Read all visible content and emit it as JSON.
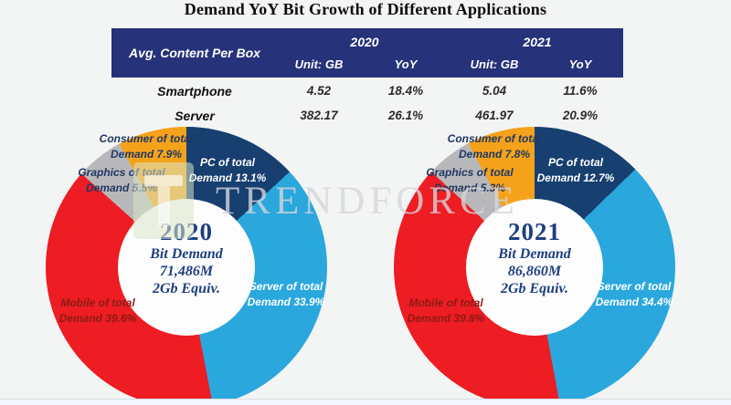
{
  "title": "Demand YoY Bit Growth of Different Applications",
  "watermark": {
    "text": "TRENDFORCE",
    "logo": "trendforce-tf-logo"
  },
  "colors": {
    "table_header_bg": "#263279",
    "pc_navy": "#173f70",
    "server_cyan": "#2aa7dd",
    "mobile_red": "#ee1c23",
    "graphics_gray": "#b8b8ba",
    "consumer_orange": "#f5a21b",
    "center_text_navy": "#1e3f80",
    "page_bg": "#f3f4f4"
  },
  "table": {
    "corner_label": "Avg. Content Per Box",
    "year_groups": [
      "2020",
      "2021"
    ],
    "sub_headers": [
      "Unit: GB",
      "YoY",
      "Unit: GB",
      "YoY"
    ],
    "rows": [
      {
        "label": "Smartphone",
        "values": [
          "4.52",
          "18.4%",
          "5.04",
          "11.6%"
        ]
      },
      {
        "label": "Server",
        "values": [
          "382.17",
          "26.1%",
          "461.97",
          "20.9%"
        ]
      }
    ]
  },
  "chart_data": [
    {
      "type": "pie",
      "title": "2020",
      "center_lines": [
        "2020",
        "Bit Demand",
        "71,486M",
        "2Gb Equiv."
      ],
      "total_bit_demand": "71,486M",
      "unit_note": "2Gb Equiv.",
      "slices": [
        {
          "name": "pc",
          "label_lines": [
            "PC of total",
            "Demand 13.1%"
          ],
          "value": 13.1,
          "color": "#173f70",
          "label_color": "#ffffff"
        },
        {
          "name": "server",
          "label_lines": [
            "Server of total",
            "Demand 33.9%"
          ],
          "value": 33.9,
          "color": "#2aa7dd",
          "label_color": "#ffffff"
        },
        {
          "name": "mobile",
          "label_lines": [
            "Mobile of total",
            "Demand 39.6%"
          ],
          "value": 39.6,
          "color": "#ee1c23",
          "label_color": "#8a1c15"
        },
        {
          "name": "graphics",
          "label_lines": [
            "Graphics of total",
            "Demand 5.5%"
          ],
          "value": 5.5,
          "color": "#b8b8ba",
          "label_color": "#1f3864"
        },
        {
          "name": "consumer",
          "label_lines": [
            "Consumer of total",
            "Demand 7.9%"
          ],
          "value": 7.9,
          "color": "#f5a21b",
          "label_color": "#1f3864"
        }
      ]
    },
    {
      "type": "pie",
      "title": "2021",
      "center_lines": [
        "2021",
        "Bit Demand",
        "86,860M",
        "2Gb Equiv."
      ],
      "total_bit_demand": "86,860M",
      "unit_note": "2Gb Equiv.",
      "slices": [
        {
          "name": "pc",
          "label_lines": [
            "PC of total",
            "Demand 12.7%"
          ],
          "value": 12.7,
          "color": "#173f70",
          "label_color": "#ffffff"
        },
        {
          "name": "server",
          "label_lines": [
            "Server of total",
            "Demand 34.4%"
          ],
          "value": 34.4,
          "color": "#2aa7dd",
          "label_color": "#ffffff"
        },
        {
          "name": "mobile",
          "label_lines": [
            "Mobile of total",
            "Demand 39.8%"
          ],
          "value": 39.8,
          "color": "#ee1c23",
          "label_color": "#8a1c15"
        },
        {
          "name": "graphics",
          "label_lines": [
            "Graphics of total",
            "Demand 5.3%"
          ],
          "value": 5.3,
          "color": "#b8b8ba",
          "label_color": "#1f3864"
        },
        {
          "name": "consumer",
          "label_lines": [
            "Consumer of total",
            "Demand 7.8%"
          ],
          "value": 7.8,
          "color": "#f5a21b",
          "label_color": "#1f3864"
        }
      ]
    }
  ]
}
